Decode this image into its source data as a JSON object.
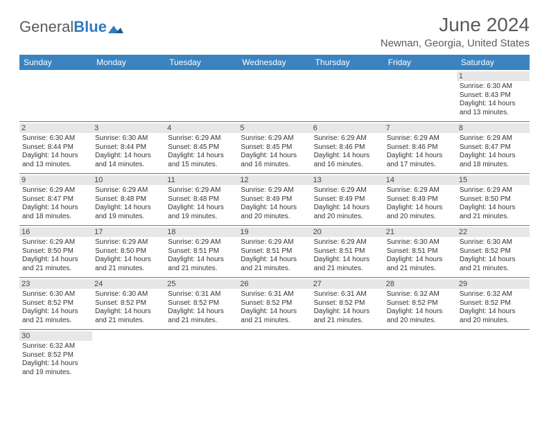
{
  "logo": {
    "part1": "General",
    "part2": "Blue"
  },
  "title": "June 2024",
  "location": "Newnan, Georgia, United States",
  "header_bg": "#3b83c0",
  "divider_color": "#3b83c0",
  "daynum_bg": "#e7e7e7",
  "text_color": "#333333",
  "days_of_week": [
    "Sunday",
    "Monday",
    "Tuesday",
    "Wednesday",
    "Thursday",
    "Friday",
    "Saturday"
  ],
  "weeks": [
    [
      null,
      null,
      null,
      null,
      null,
      null,
      {
        "n": "1",
        "sunrise": "6:30 AM",
        "sunset": "8:43 PM",
        "day_h": "14",
        "day_m": "13"
      }
    ],
    [
      {
        "n": "2",
        "sunrise": "6:30 AM",
        "sunset": "8:44 PM",
        "day_h": "14",
        "day_m": "13"
      },
      {
        "n": "3",
        "sunrise": "6:30 AM",
        "sunset": "8:44 PM",
        "day_h": "14",
        "day_m": "14"
      },
      {
        "n": "4",
        "sunrise": "6:29 AM",
        "sunset": "8:45 PM",
        "day_h": "14",
        "day_m": "15"
      },
      {
        "n": "5",
        "sunrise": "6:29 AM",
        "sunset": "8:45 PM",
        "day_h": "14",
        "day_m": "16"
      },
      {
        "n": "6",
        "sunrise": "6:29 AM",
        "sunset": "8:46 PM",
        "day_h": "14",
        "day_m": "16"
      },
      {
        "n": "7",
        "sunrise": "6:29 AM",
        "sunset": "8:46 PM",
        "day_h": "14",
        "day_m": "17"
      },
      {
        "n": "8",
        "sunrise": "6:29 AM",
        "sunset": "8:47 PM",
        "day_h": "14",
        "day_m": "18"
      }
    ],
    [
      {
        "n": "9",
        "sunrise": "6:29 AM",
        "sunset": "8:47 PM",
        "day_h": "14",
        "day_m": "18"
      },
      {
        "n": "10",
        "sunrise": "6:29 AM",
        "sunset": "8:48 PM",
        "day_h": "14",
        "day_m": "19"
      },
      {
        "n": "11",
        "sunrise": "6:29 AM",
        "sunset": "8:48 PM",
        "day_h": "14",
        "day_m": "19"
      },
      {
        "n": "12",
        "sunrise": "6:29 AM",
        "sunset": "8:49 PM",
        "day_h": "14",
        "day_m": "20"
      },
      {
        "n": "13",
        "sunrise": "6:29 AM",
        "sunset": "8:49 PM",
        "day_h": "14",
        "day_m": "20"
      },
      {
        "n": "14",
        "sunrise": "6:29 AM",
        "sunset": "8:49 PM",
        "day_h": "14",
        "day_m": "20"
      },
      {
        "n": "15",
        "sunrise": "6:29 AM",
        "sunset": "8:50 PM",
        "day_h": "14",
        "day_m": "21"
      }
    ],
    [
      {
        "n": "16",
        "sunrise": "6:29 AM",
        "sunset": "8:50 PM",
        "day_h": "14",
        "day_m": "21"
      },
      {
        "n": "17",
        "sunrise": "6:29 AM",
        "sunset": "8:50 PM",
        "day_h": "14",
        "day_m": "21"
      },
      {
        "n": "18",
        "sunrise": "6:29 AM",
        "sunset": "8:51 PM",
        "day_h": "14",
        "day_m": "21"
      },
      {
        "n": "19",
        "sunrise": "6:29 AM",
        "sunset": "8:51 PM",
        "day_h": "14",
        "day_m": "21"
      },
      {
        "n": "20",
        "sunrise": "6:29 AM",
        "sunset": "8:51 PM",
        "day_h": "14",
        "day_m": "21"
      },
      {
        "n": "21",
        "sunrise": "6:30 AM",
        "sunset": "8:51 PM",
        "day_h": "14",
        "day_m": "21"
      },
      {
        "n": "22",
        "sunrise": "6:30 AM",
        "sunset": "8:52 PM",
        "day_h": "14",
        "day_m": "21"
      }
    ],
    [
      {
        "n": "23",
        "sunrise": "6:30 AM",
        "sunset": "8:52 PM",
        "day_h": "14",
        "day_m": "21"
      },
      {
        "n": "24",
        "sunrise": "6:30 AM",
        "sunset": "8:52 PM",
        "day_h": "14",
        "day_m": "21"
      },
      {
        "n": "25",
        "sunrise": "6:31 AM",
        "sunset": "8:52 PM",
        "day_h": "14",
        "day_m": "21"
      },
      {
        "n": "26",
        "sunrise": "6:31 AM",
        "sunset": "8:52 PM",
        "day_h": "14",
        "day_m": "21"
      },
      {
        "n": "27",
        "sunrise": "6:31 AM",
        "sunset": "8:52 PM",
        "day_h": "14",
        "day_m": "21"
      },
      {
        "n": "28",
        "sunrise": "6:32 AM",
        "sunset": "8:52 PM",
        "day_h": "14",
        "day_m": "20"
      },
      {
        "n": "29",
        "sunrise": "6:32 AM",
        "sunset": "8:52 PM",
        "day_h": "14",
        "day_m": "20"
      }
    ],
    [
      {
        "n": "30",
        "sunrise": "6:32 AM",
        "sunset": "8:52 PM",
        "day_h": "14",
        "day_m": "19"
      },
      null,
      null,
      null,
      null,
      null,
      null
    ]
  ],
  "labels": {
    "sunrise": "Sunrise:",
    "sunset": "Sunset:",
    "daylight": "Daylight:",
    "hours": "hours",
    "and": "and",
    "minutes": "minutes."
  }
}
